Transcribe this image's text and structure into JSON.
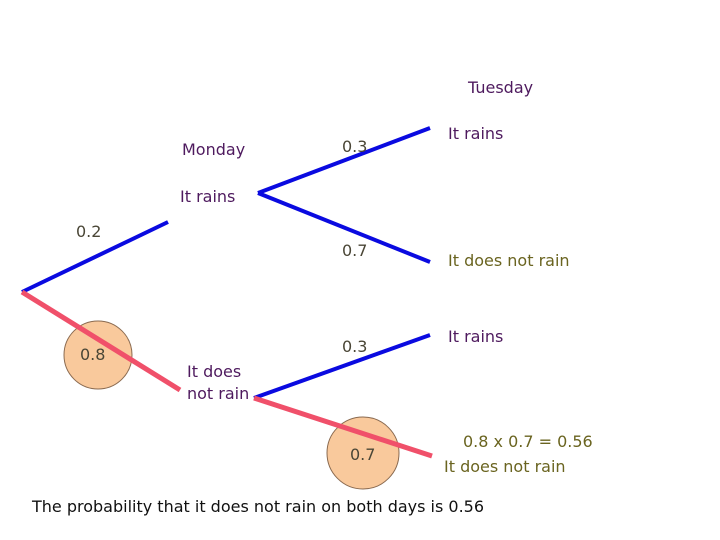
{
  "tuesday_label": "Tuesday",
  "monday_label": "Monday",
  "monday": {
    "rain": {
      "label": "It rains",
      "probability": "0.2"
    },
    "no_rain": {
      "label": "It does not rain",
      "probability": "0.8"
    }
  },
  "tuesday_after_rain": {
    "rain": {
      "label": "It rains",
      "probability": "0.3"
    },
    "no_rain": {
      "label": "It does not rain",
      "probability": "0.7"
    }
  },
  "tuesday_after_no_rain": {
    "rain": {
      "label": "It rains",
      "probability": "0.3"
    },
    "no_rain": {
      "label": "It does not rain",
      "probability": "0.7"
    }
  },
  "calculation": "0.8 x 0.7 = 0.56",
  "conclusion": "The probability that it does not rain on both days is 0.56"
}
